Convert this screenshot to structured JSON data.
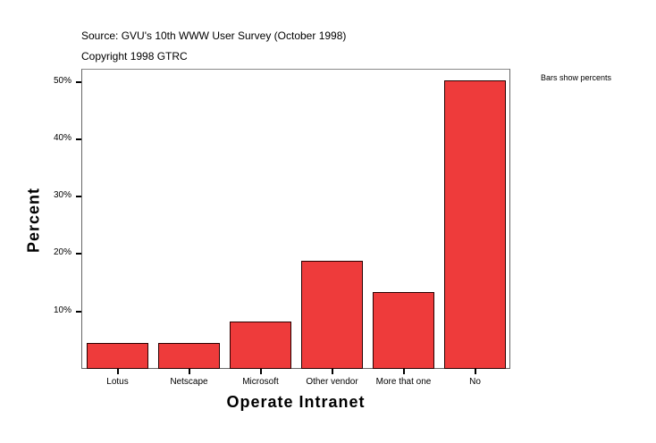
{
  "header": {
    "source": "Source: GVU's 10th WWW User Survey (October 1998)",
    "copyright": "Copyright 1998 GTRC"
  },
  "note": "Bars show percents",
  "colors": {
    "bar": "#ee3b3b",
    "bar_border": "#2a0000"
  },
  "chart_data": {
    "type": "bar",
    "title": "",
    "xlabel": "Operate Intranet",
    "ylabel": "Percent",
    "categories": [
      "Lotus",
      "Netscape",
      "Microsoft",
      "Other vendor",
      "More that one",
      "No"
    ],
    "values": [
      4.5,
      4.5,
      8.2,
      18.8,
      13.3,
      50.2
    ],
    "unit": "%",
    "ylim": [
      0,
      52
    ],
    "yticks": [
      "10%",
      "20%",
      "30%",
      "40%",
      "50%"
    ],
    "ytick_values": [
      10,
      20,
      30,
      40,
      50
    ],
    "grid": false,
    "legend": null,
    "annotation": "Bars show percents"
  }
}
